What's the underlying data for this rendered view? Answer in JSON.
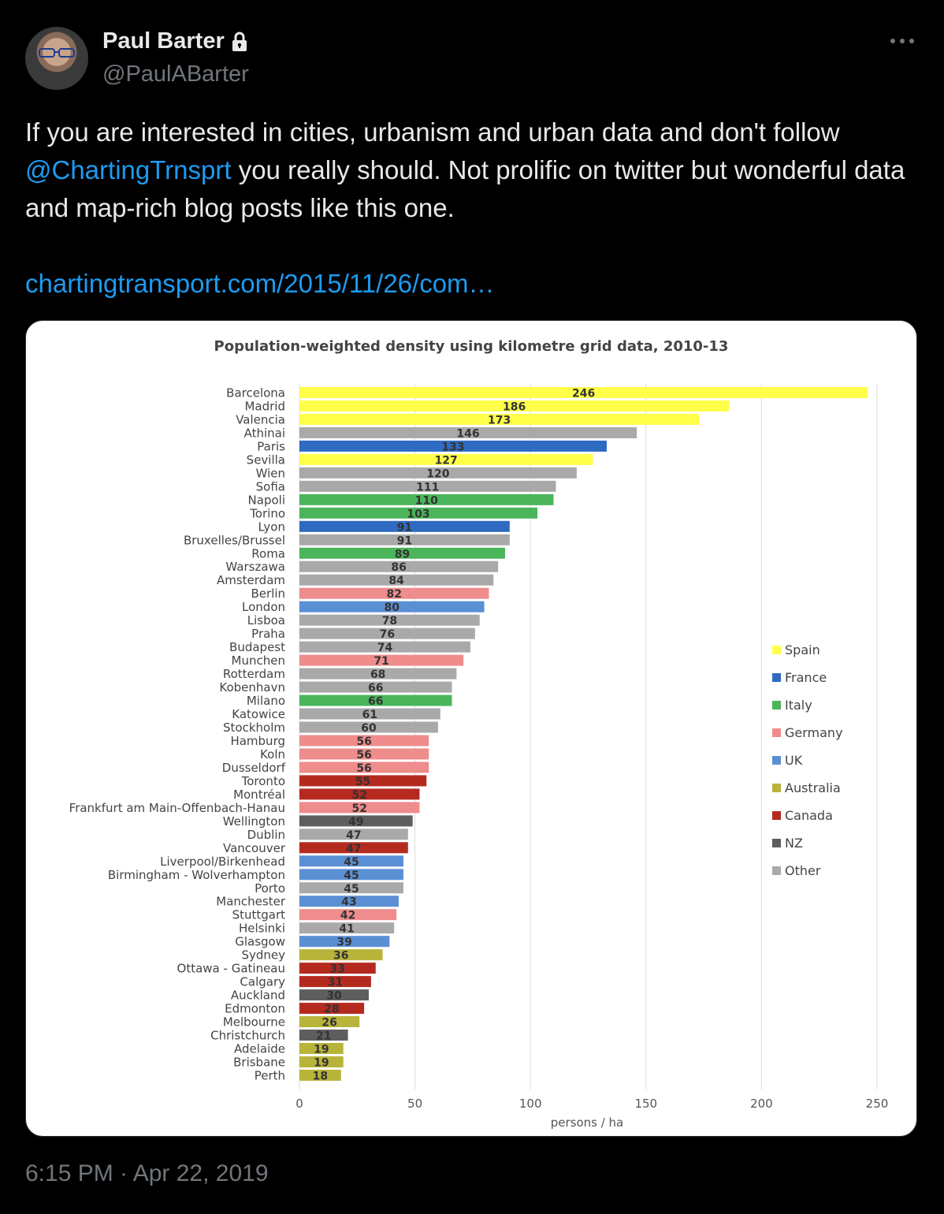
{
  "author": {
    "display_name": "Paul Barter",
    "handle": "@PaulABarter"
  },
  "tweet": {
    "text_before": "If you are interested in cities, urbanism and urban data and don't follow ",
    "mention": "@ChartingTrnsprt",
    "text_after": " you really should. Not prolific on twitter but wonderful data and map-rich blog posts like this one.",
    "link": "chartingtransport.com/2015/11/26/com…",
    "timestamp": "6:15 PM · Apr 22, 2019"
  },
  "colors": {
    "Spain": "#ffff4a",
    "France": "#2e6bc1",
    "Italy": "#4ab55a",
    "Germany": "#ef8c8c",
    "UK": "#5b8fd4",
    "Australia": "#b8b43a",
    "Canada": "#b52a1f",
    "NZ": "#5e5e5e",
    "Other": "#a9a9a9"
  },
  "chart_data": {
    "type": "bar",
    "orientation": "horizontal",
    "title": "Population-weighted density using kilometre grid data, 2010-13",
    "xlabel": "persons / ha",
    "xlim": [
      0,
      250
    ],
    "xticks": [
      "0",
      "50",
      "100",
      "150",
      "200",
      "250"
    ],
    "grid": true,
    "legend_position": "right",
    "legend": [
      "Spain",
      "France",
      "Italy",
      "Germany",
      "UK",
      "Australia",
      "Canada",
      "NZ",
      "Other"
    ],
    "categories": [
      "Barcelona",
      "Madrid",
      "Valencia",
      "Athinai",
      "Paris",
      "Sevilla",
      "Wien",
      "Sofia",
      "Napoli",
      "Torino",
      "Lyon",
      "Bruxelles/Brussel",
      "Roma",
      "Warszawa",
      "Amsterdam",
      "Berlin",
      "London",
      "Lisboa",
      "Praha",
      "Budapest",
      "Munchen",
      "Rotterdam",
      "Kobenhavn",
      "Milano",
      "Katowice",
      "Stockholm",
      "Hamburg",
      "Koln",
      "Dusseldorf",
      "Toronto",
      "Montréal",
      "Frankfurt am Main-Offenbach-Hanau",
      "Wellington",
      "Dublin",
      "Vancouver",
      "Liverpool/Birkenhead",
      "Birmingham - Wolverhampton",
      "Porto",
      "Manchester",
      "Stuttgart",
      "Helsinki",
      "Glasgow",
      "Sydney",
      "Ottawa - Gatineau",
      "Calgary",
      "Auckland",
      "Edmonton",
      "Melbourne",
      "Christchurch",
      "Adelaide",
      "Brisbane",
      "Perth"
    ],
    "values": [
      246,
      186,
      173,
      146,
      133,
      127,
      120,
      111,
      110,
      103,
      91,
      91,
      89,
      86,
      84,
      82,
      80,
      78,
      76,
      74,
      71,
      68,
      66,
      66,
      61,
      60,
      56,
      56,
      56,
      55,
      52,
      52,
      49,
      47,
      47,
      45,
      45,
      45,
      43,
      42,
      41,
      39,
      36,
      33,
      31,
      30,
      28,
      26,
      21,
      19,
      19,
      18
    ],
    "groups": [
      "Spain",
      "Spain",
      "Spain",
      "Other",
      "France",
      "Spain",
      "Other",
      "Other",
      "Italy",
      "Italy",
      "France",
      "Other",
      "Italy",
      "Other",
      "Other",
      "Germany",
      "UK",
      "Other",
      "Other",
      "Other",
      "Germany",
      "Other",
      "Other",
      "Italy",
      "Other",
      "Other",
      "Germany",
      "Germany",
      "Germany",
      "Canada",
      "Canada",
      "Germany",
      "NZ",
      "Other",
      "Canada",
      "UK",
      "UK",
      "Other",
      "UK",
      "Germany",
      "Other",
      "UK",
      "Australia",
      "Canada",
      "Canada",
      "NZ",
      "Canada",
      "Australia",
      "NZ",
      "Australia",
      "Australia",
      "Australia"
    ]
  }
}
